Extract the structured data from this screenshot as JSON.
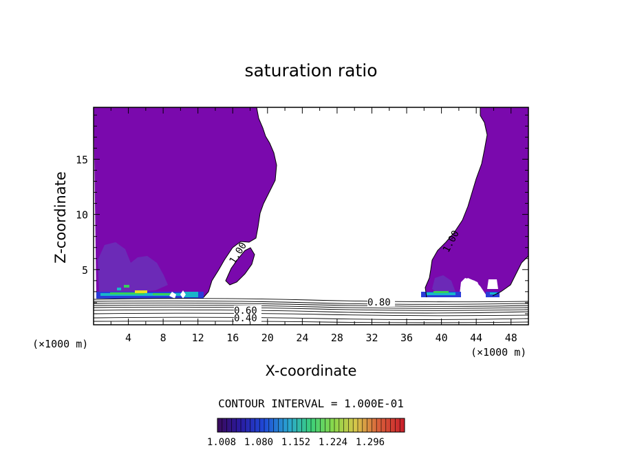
{
  "chart_data": {
    "type": "heatmap",
    "title": "saturation ratio",
    "xlabel": "X-coordinate",
    "ylabel": "Z-coordinate",
    "x_unit_left": "(×1000 m)",
    "x_unit_right": "(×1000 m)",
    "xlim": [
      0,
      50
    ],
    "ylim": [
      0,
      19.7
    ],
    "xticks": [
      4,
      8,
      12,
      16,
      20,
      24,
      28,
      32,
      36,
      40,
      44,
      48
    ],
    "yticks": [
      5,
      10,
      15
    ],
    "contour_interval_text": "CONTOUR INTERVAL = 1.000E-01",
    "contour_labels": [
      {
        "text": "1.00",
        "x": 15.3,
        "z": 6.3
      },
      {
        "text": "1.00",
        "x": 40.6,
        "z": 7.3
      },
      {
        "text": "0.80",
        "x": 33.0,
        "z": 2.0
      },
      {
        "text": "0.60",
        "x": 17.8,
        "z": 1.3
      },
      {
        "text": "0.40",
        "x": 17.8,
        "z": 0.7
      }
    ],
    "contour_lines_z": [
      0.35,
      0.7,
      1.0,
      1.3,
      1.6,
      1.85,
      2.05,
      2.2
    ],
    "colorbar": {
      "tick_labels": [
        "1.008",
        "1.080",
        "1.152",
        "1.224",
        "1.296"
      ],
      "range": [
        1.0,
        1.3
      ]
    },
    "regions": [
      {
        "name": "saturated-left",
        "min_value": 1.0
      },
      {
        "name": "saturated-right",
        "min_value": 1.0
      }
    ],
    "colors": {
      "saturated": "#7a09ad",
      "enhanced": "#6a2fb8",
      "blue": "#2a3cd8",
      "cyan": "#19b6c9",
      "green": "#36d05a",
      "yellow": "#e8e022"
    }
  }
}
